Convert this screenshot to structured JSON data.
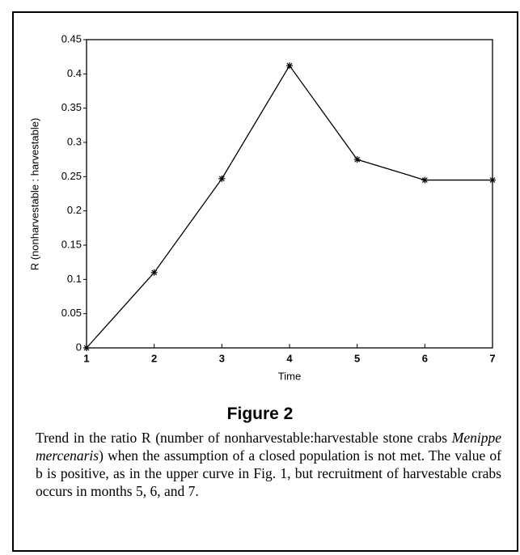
{
  "chart_data": {
    "type": "line",
    "ylabel": "R (nonharvestable : harvestable)",
    "xlabel": "Time",
    "x": [
      1,
      2,
      3,
      4,
      5,
      6,
      7
    ],
    "series": [
      {
        "color": "#000000",
        "values": [
          0,
          0.11,
          0.247,
          0.412,
          0.275,
          0.245,
          0.245
        ]
      }
    ],
    "xlim": [
      1,
      7
    ],
    "xticks": [
      1,
      2,
      3,
      4,
      5,
      6,
      7
    ],
    "ylim": [
      0,
      0.45
    ],
    "yticks": [
      0,
      0.05,
      0.1,
      0.15,
      0.2,
      0.25,
      0.3,
      0.35,
      0.4,
      0.45
    ],
    "grid": false
  },
  "figure": {
    "label": "Figure 2",
    "caption": [
      "Trend in the ratio R (number of nonharvestable:harvestable stone crabs ",
      "Menippe mercenaris",
      ") when the assumption of a closed population is not met. The value of b is positive, as in the upper curve in Fig. 1, but recruitment of harvestable crabs occurs in months 5, 6, and 7."
    ]
  }
}
